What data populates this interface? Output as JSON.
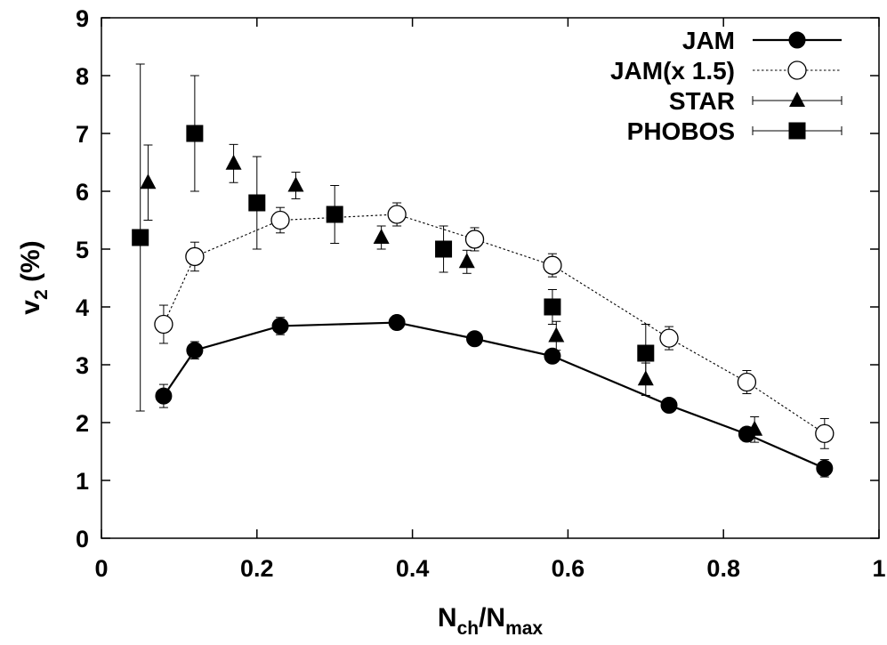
{
  "chart_data": {
    "type": "scatter",
    "xlabel": {
      "main": "N",
      "sub1": "ch",
      "mid": "/N",
      "sub2": "max"
    },
    "ylabel": {
      "main": "v",
      "sub": "2",
      "rest": " (%)"
    },
    "xlim": [
      0,
      1
    ],
    "ylim": [
      0,
      9
    ],
    "xticks": [
      "0",
      "0.2",
      "0.4",
      "0.6",
      "0.8",
      "1"
    ],
    "xtick_values": [
      0,
      0.2,
      0.4,
      0.6,
      0.8,
      1
    ],
    "yticks": [
      "0",
      "1",
      "2",
      "3",
      "4",
      "5",
      "6",
      "7",
      "8",
      "9"
    ],
    "ytick_values": [
      0,
      1,
      2,
      3,
      4,
      5,
      6,
      7,
      8,
      9
    ],
    "grid": false,
    "legend_position": "top-right",
    "series": [
      {
        "name": "JAM",
        "marker": "filled-circle",
        "line": "solid",
        "color": "#000000",
        "x": [
          0.08,
          0.12,
          0.23,
          0.38,
          0.48,
          0.58,
          0.73,
          0.83,
          0.93
        ],
        "y": [
          2.46,
          3.25,
          3.67,
          3.73,
          3.45,
          3.15,
          2.3,
          1.8,
          1.21
        ],
        "yerr": [
          0.2,
          0.15,
          0.15,
          0.12,
          0.12,
          0.12,
          0.1,
          0.12,
          0.15
        ]
      },
      {
        "name": "JAM(x 1.5)",
        "marker": "open-circle",
        "line": "dotted",
        "color": "#000000",
        "x": [
          0.08,
          0.12,
          0.23,
          0.38,
          0.48,
          0.58,
          0.73,
          0.83,
          0.93
        ],
        "y": [
          3.7,
          4.87,
          5.5,
          5.6,
          5.17,
          4.72,
          3.46,
          2.7,
          1.81
        ],
        "yerr": [
          0.33,
          0.25,
          0.22,
          0.2,
          0.2,
          0.2,
          0.2,
          0.2,
          0.26
        ]
      },
      {
        "name": "STAR",
        "marker": "filled-triangle",
        "line": "none",
        "color": "#000000",
        "x": [
          0.06,
          0.17,
          0.25,
          0.36,
          0.47,
          0.585,
          0.7,
          0.84
        ],
        "y": [
          6.15,
          6.48,
          6.1,
          5.2,
          4.78,
          3.5,
          2.75,
          1.88
        ],
        "yerr": [
          0.65,
          0.33,
          0.23,
          0.2,
          0.2,
          0.25,
          0.28,
          0.22
        ]
      },
      {
        "name": "PHOBOS",
        "marker": "filled-square",
        "line": "none",
        "color": "#000000",
        "x": [
          0.05,
          0.12,
          0.2,
          0.3,
          0.44,
          0.58,
          0.7
        ],
        "y": [
          5.2,
          7.0,
          5.8,
          5.6,
          5.0,
          4.0,
          3.2
        ],
        "yerr": [
          3.0,
          1.0,
          0.8,
          0.5,
          0.4,
          0.3,
          0.5
        ]
      }
    ]
  }
}
